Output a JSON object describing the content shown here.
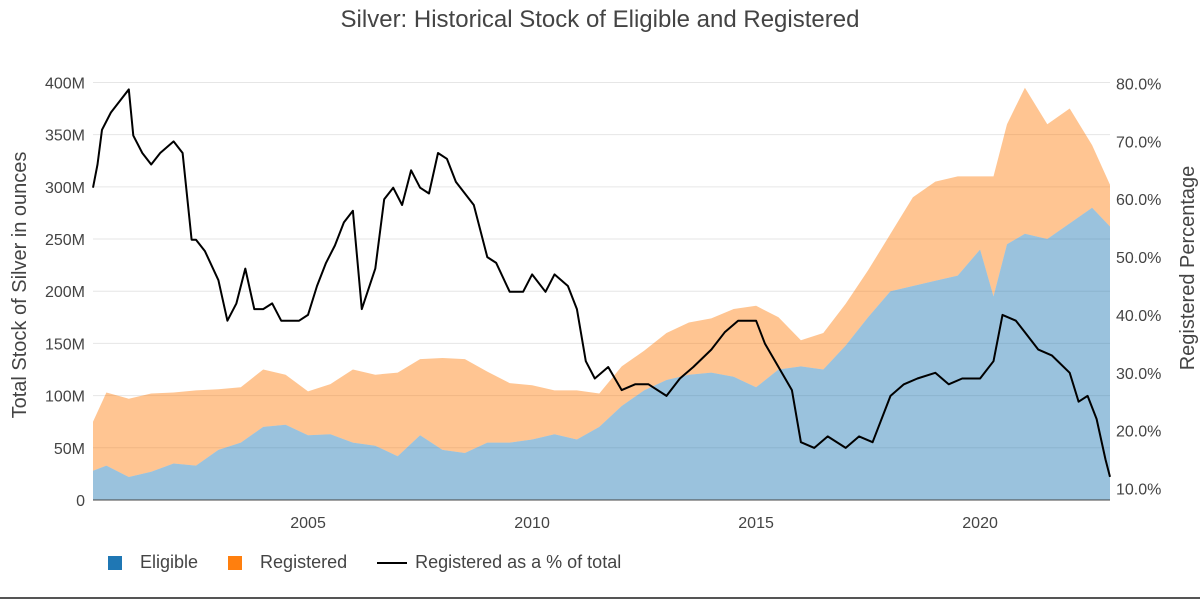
{
  "chart_data": {
    "type": "area",
    "title": "Silver: Historical Stock of Eligible and Registered",
    "ylabel": "Total Stock of Silver in ounces",
    "y2label": "Registered Percentage",
    "xlim": [
      2000.2,
      2022.9
    ],
    "ylim": [
      0,
      410000000
    ],
    "y2lim": [
      8,
      82
    ],
    "x_ticks": [
      2005,
      2010,
      2015,
      2020
    ],
    "y_ticks": [
      0,
      50000000,
      100000000,
      150000000,
      200000000,
      250000000,
      300000000,
      350000000,
      400000000
    ],
    "y_tick_labels": [
      "0",
      "50M",
      "100M",
      "150M",
      "200M",
      "250M",
      "300M",
      "350M",
      "400M"
    ],
    "y2_ticks": [
      10,
      20,
      30,
      40,
      50,
      60,
      70,
      80
    ],
    "y2_tick_labels": [
      "10.0%",
      "20.0%",
      "30.0%",
      "40.0%",
      "50.0%",
      "60.0%",
      "70.0%",
      "80.0%"
    ],
    "grid": true,
    "legend_position": "bottom-left",
    "colors": {
      "eligible": "#1f77b4",
      "registered": "#ff7f0e",
      "ratio": "#000000"
    },
    "series": [
      {
        "name": "Eligible",
        "kind": "stacked-area",
        "x": [
          2000.2,
          2000.5,
          2001.0,
          2001.5,
          2002.0,
          2002.5,
          2003.0,
          2003.5,
          2004.0,
          2004.5,
          2005.0,
          2005.5,
          2006.0,
          2006.5,
          2007.0,
          2007.5,
          2008.0,
          2008.5,
          2009.0,
          2009.5,
          2010.0,
          2010.5,
          2011.0,
          2011.5,
          2012.0,
          2012.5,
          2013.0,
          2013.5,
          2014.0,
          2014.5,
          2015.0,
          2015.5,
          2016.0,
          2016.5,
          2017.0,
          2017.5,
          2018.0,
          2018.5,
          2019.0,
          2019.5,
          2020.0,
          2020.3,
          2020.6,
          2021.0,
          2021.5,
          2022.0,
          2022.5,
          2022.9
        ],
        "values": [
          28000000,
          33000000,
          22000000,
          27000000,
          35000000,
          33000000,
          48000000,
          55000000,
          70000000,
          72000000,
          62000000,
          63000000,
          55000000,
          52000000,
          42000000,
          62000000,
          48000000,
          45000000,
          55000000,
          55000000,
          58000000,
          63000000,
          58000000,
          70000000,
          90000000,
          105000000,
          115000000,
          120000000,
          122000000,
          118000000,
          108000000,
          125000000,
          128000000,
          125000000,
          148000000,
          175000000,
          200000000,
          205000000,
          210000000,
          215000000,
          240000000,
          195000000,
          245000000,
          255000000,
          250000000,
          265000000,
          280000000,
          262000000
        ]
      },
      {
        "name": "Registered",
        "kind": "stacked-area",
        "x": [
          2000.2,
          2000.5,
          2001.0,
          2001.5,
          2002.0,
          2002.5,
          2003.0,
          2003.5,
          2004.0,
          2004.5,
          2005.0,
          2005.5,
          2006.0,
          2006.5,
          2007.0,
          2007.5,
          2008.0,
          2008.5,
          2009.0,
          2009.5,
          2010.0,
          2010.5,
          2011.0,
          2011.5,
          2012.0,
          2012.5,
          2013.0,
          2013.5,
          2014.0,
          2014.5,
          2015.0,
          2015.5,
          2016.0,
          2016.5,
          2017.0,
          2017.5,
          2018.0,
          2018.5,
          2019.0,
          2019.5,
          2020.0,
          2020.3,
          2020.6,
          2021.0,
          2021.5,
          2022.0,
          2022.5,
          2022.9
        ],
        "values": [
          47000000,
          70000000,
          75000000,
          75000000,
          68000000,
          72000000,
          58000000,
          53000000,
          55000000,
          48000000,
          42000000,
          48000000,
          70000000,
          68000000,
          80000000,
          73000000,
          88000000,
          90000000,
          68000000,
          57000000,
          52000000,
          42000000,
          47000000,
          32000000,
          38000000,
          38000000,
          45000000,
          50000000,
          52000000,
          65000000,
          78000000,
          50000000,
          25000000,
          35000000,
          40000000,
          45000000,
          55000000,
          85000000,
          95000000,
          95000000,
          70000000,
          115000000,
          115000000,
          140000000,
          110000000,
          110000000,
          60000000,
          40000000
        ]
      },
      {
        "name": "Registered as a % of total",
        "kind": "line",
        "axis": "y2",
        "x": [
          2000.2,
          2000.3,
          2000.4,
          2000.6,
          2000.8,
          2001.0,
          2001.1,
          2001.3,
          2001.5,
          2001.7,
          2002.0,
          2002.2,
          2002.4,
          2002.5,
          2002.7,
          2003.0,
          2003.2,
          2003.4,
          2003.6,
          2003.8,
          2004.0,
          2004.2,
          2004.4,
          2004.6,
          2004.8,
          2005.0,
          2005.2,
          2005.4,
          2005.6,
          2005.8,
          2006.0,
          2006.2,
          2006.5,
          2006.7,
          2006.9,
          2007.1,
          2007.3,
          2007.5,
          2007.7,
          2007.9,
          2008.1,
          2008.3,
          2008.5,
          2008.7,
          2009.0,
          2009.2,
          2009.5,
          2009.8,
          2010.0,
          2010.3,
          2010.5,
          2010.8,
          2011.0,
          2011.2,
          2011.4,
          2011.7,
          2012.0,
          2012.3,
          2012.6,
          2013.0,
          2013.3,
          2013.6,
          2014.0,
          2014.3,
          2014.6,
          2015.0,
          2015.2,
          2015.5,
          2015.8,
          2016.0,
          2016.3,
          2016.6,
          2017.0,
          2017.3,
          2017.6,
          2018.0,
          2018.3,
          2018.6,
          2019.0,
          2019.3,
          2019.6,
          2020.0,
          2020.3,
          2020.5,
          2020.8,
          2021.0,
          2021.3,
          2021.6,
          2022.0,
          2022.2,
          2022.4,
          2022.6,
          2022.8,
          2022.9
        ],
        "values": [
          62,
          66,
          72,
          75,
          77,
          79,
          71,
          68,
          66,
          68,
          70,
          68,
          53,
          53,
          51,
          46,
          39,
          42,
          48,
          41,
          41,
          42,
          39,
          39,
          39,
          40,
          45,
          49,
          52,
          56,
          58,
          41,
          48,
          60,
          62,
          59,
          65,
          62,
          61,
          68,
          67,
          63,
          61,
          59,
          50,
          49,
          44,
          44,
          47,
          44,
          47,
          45,
          41,
          32,
          29,
          31,
          27,
          28,
          28,
          26,
          29,
          31,
          34,
          37,
          39,
          39,
          35,
          31,
          27,
          18,
          17,
          19,
          17,
          19,
          18,
          26,
          28,
          29,
          30,
          28,
          29,
          29,
          32,
          40,
          39,
          37,
          34,
          33,
          30,
          25,
          26,
          22,
          15,
          12
        ]
      }
    ]
  }
}
